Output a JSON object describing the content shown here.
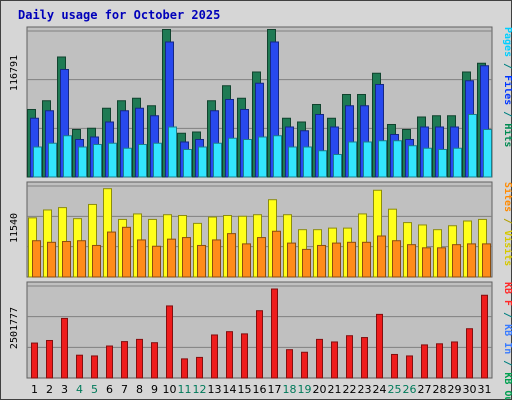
{
  "chart_data": {
    "type": "bar",
    "title": "Daily usage for October 2025",
    "categories": [
      "1",
      "2",
      "3",
      "4",
      "5",
      "6",
      "7",
      "8",
      "9",
      "10",
      "11",
      "12",
      "13",
      "14",
      "15",
      "16",
      "17",
      "18",
      "19",
      "20",
      "21",
      "22",
      "23",
      "24",
      "25",
      "26",
      "27",
      "28",
      "29",
      "30",
      "31"
    ],
    "weekend_days": [
      "4",
      "5",
      "11",
      "12",
      "18",
      "19",
      "25",
      "26"
    ],
    "panels": [
      {
        "name": "hits-files-pages",
        "ymax": 116791,
        "ymax_label": "116791",
        "right_labels": [
          {
            "text": "Pages",
            "color": "#00cfff"
          },
          {
            "text": " / ",
            "color": "#008080"
          },
          {
            "text": "Files",
            "color": "#0036ff"
          },
          {
            "text": " / ",
            "color": "#008080"
          },
          {
            "text": "Hits",
            "color": "#008a52"
          }
        ],
        "series": [
          {
            "name": "Hits",
            "color": "#1f7a54",
            "values": [
              54000,
              61000,
              96000,
              38000,
              39000,
              55000,
              61000,
              63000,
              57000,
              118000,
              35000,
              36000,
              61000,
              73000,
              63000,
              84000,
              118000,
              47000,
              44000,
              58000,
              47000,
              66000,
              66000,
              83000,
              42000,
              38000,
              48000,
              49000,
              49000,
              84000,
              91000
            ]
          },
          {
            "name": "Files",
            "color": "#2849ef",
            "values": [
              47000,
              53000,
              86000,
              30000,
              32000,
              44000,
              53000,
              55000,
              49000,
              108000,
              28000,
              30000,
              53000,
              62000,
              54000,
              75000,
              108000,
              40000,
              37000,
              50000,
              40000,
              57000,
              57000,
              74000,
              34000,
              30000,
              40000,
              40000,
              40000,
              77000,
              89000
            ]
          },
          {
            "name": "Pages",
            "color": "#33e5ff",
            "values": [
              24000,
              27000,
              33000,
              24000,
              26000,
              27000,
              23000,
              26000,
              27000,
              40000,
              22000,
              24000,
              27000,
              31000,
              30000,
              32000,
              33000,
              24000,
              24000,
              21000,
              18000,
              28000,
              28000,
              29000,
              29000,
              25000,
              23000,
              22000,
              23000,
              50000,
              38000
            ]
          }
        ]
      },
      {
        "name": "visits-sites",
        "ymax": 11540,
        "ymax_label": "11540",
        "right_labels": [
          {
            "text": "Sites",
            "color": "#ff8a00"
          },
          {
            "text": " / ",
            "color": "#b3a000"
          },
          {
            "text": "Visits",
            "color": "#d6c800"
          }
        ],
        "series": [
          {
            "name": "Visits",
            "color": "#ffff1a",
            "values": [
              7500,
              8500,
              8800,
              7400,
              9200,
              11200,
              7300,
              8000,
              7300,
              7900,
              7800,
              6800,
              7600,
              7800,
              7700,
              7900,
              9800,
              7900,
              6000,
              6000,
              6200,
              6200,
              8000,
              11000,
              8600,
              6900,
              6600,
              6000,
              6500,
              7100,
              7300
            ]
          },
          {
            "name": "Sites",
            "color": "#ff8c1a",
            "values": [
              4600,
              4400,
              4500,
              4600,
              4000,
              5700,
              6300,
              4700,
              3900,
              4800,
              5000,
              4000,
              4700,
              5500,
              4200,
              5000,
              5800,
              4300,
              3500,
              4000,
              4300,
              4400,
              4400,
              5200,
              4600,
              4100,
              3700,
              3700,
              4100,
              4200,
              4200
            ]
          }
        ]
      },
      {
        "name": "kbytes",
        "ymax": 2501777,
        "ymax_label": "2501777",
        "right_labels": [
          {
            "text": "KB F",
            "color": "#ff2a2a"
          },
          {
            "text": " / ",
            "color": "#008080"
          },
          {
            "text": "KB In",
            "color": "#3a7cff"
          },
          {
            "text": " / ",
            "color": "#008080"
          },
          {
            "text": "KB Out",
            "color": "#00a050"
          }
        ],
        "series": [
          {
            "name": "KB F",
            "color": "#ee1c1c",
            "values": [
              950000,
              1020000,
              1620000,
              620000,
              600000,
              870000,
              990000,
              1050000,
              960000,
              1960000,
              520000,
              560000,
              1170000,
              1260000,
              1200000,
              1830000,
              2420000,
              770000,
              700000,
              1050000,
              980000,
              1150000,
              1100000,
              1730000,
              640000,
              600000,
              900000,
              930000,
              980000,
              1340000,
              2250000
            ]
          }
        ]
      }
    ]
  }
}
